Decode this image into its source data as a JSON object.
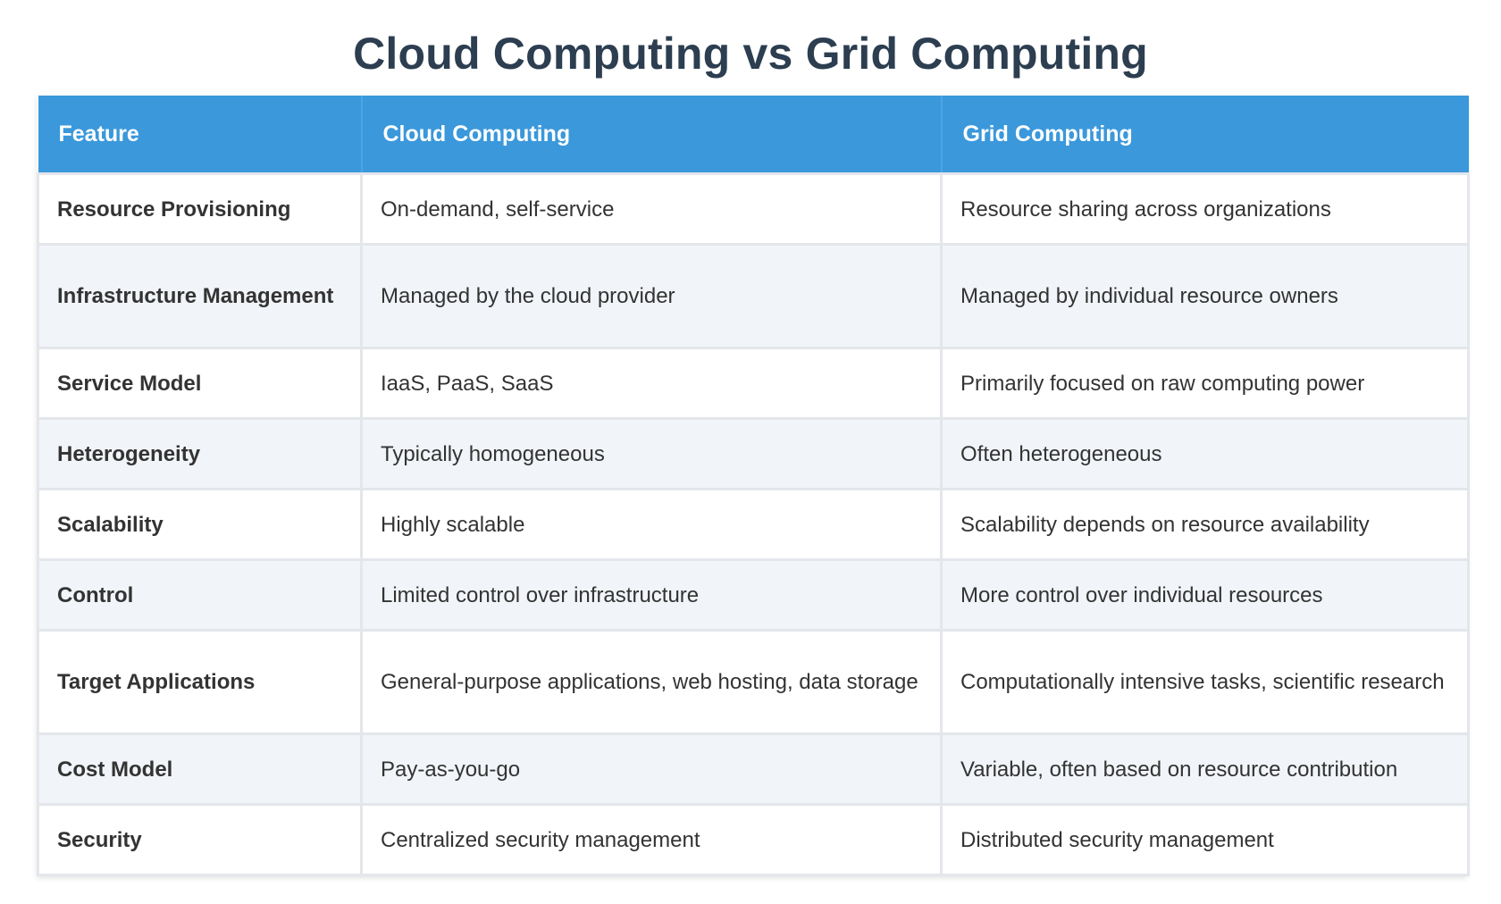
{
  "title": "Cloud Computing vs Grid Computing",
  "headers": [
    "Feature",
    "Cloud Computing",
    "Grid Computing"
  ],
  "rows": [
    {
      "feature": "Resource Provisioning",
      "cloud": "On-demand, self-service",
      "grid": "Resource sharing across organizations"
    },
    {
      "feature": "Infrastructure Management",
      "cloud": "Managed by the cloud provider",
      "grid": "Managed by individual resource owners"
    },
    {
      "feature": "Service Model",
      "cloud": "IaaS, PaaS, SaaS",
      "grid": "Primarily focused on raw computing power"
    },
    {
      "feature": "Heterogeneity",
      "cloud": "Typically homogeneous",
      "grid": "Often heterogeneous"
    },
    {
      "feature": "Scalability",
      "cloud": "Highly scalable",
      "grid": "Scalability depends on resource availability"
    },
    {
      "feature": "Control",
      "cloud": "Limited control over infrastructure",
      "grid": "More control over individual resources"
    },
    {
      "feature": "Target Applications",
      "cloud": "General-purpose applications, web hosting, data storage",
      "grid": "Computationally intensive tasks, scientific research"
    },
    {
      "feature": "Cost Model",
      "cloud": "Pay-as-you-go",
      "grid": "Variable, often based on resource contribution"
    },
    {
      "feature": "Security",
      "cloud": "Centralized security management",
      "grid": "Distributed security management"
    }
  ],
  "colors": {
    "header_bg": "#3a98db",
    "title": "#2c3e50",
    "row_alt": "#f1f4f8"
  }
}
